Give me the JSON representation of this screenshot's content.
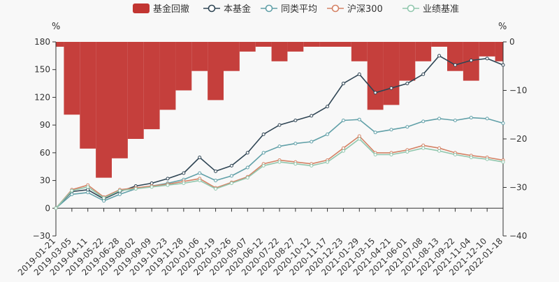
{
  "chart_data": {
    "type": "line",
    "legend": [
      {
        "name": "基金回撤",
        "color": "#c23531",
        "kind": "bar"
      },
      {
        "name": "本基金",
        "color": "#2f4554",
        "kind": "line"
      },
      {
        "name": "同类平均",
        "color": "#61a0a8",
        "kind": "line"
      },
      {
        "name": "沪深300",
        "color": "#d48265",
        "kind": "line"
      },
      {
        "name": "业绩基准",
        "color": "#91c7ae",
        "kind": "line"
      }
    ],
    "legend_position": "top-center",
    "y_left": {
      "label": "%",
      "min": -30,
      "max": 180,
      "ticks": [
        "−30",
        "0",
        "30",
        "60",
        "90",
        "120",
        "150",
        "180"
      ]
    },
    "y_right": {
      "label": "%",
      "min": -40,
      "max": 0,
      "ticks": [
        "−40",
        "−30",
        "−20",
        "−10",
        "0"
      ]
    },
    "x_tick_labels": [
      "2019-01-21",
      "2019-03-05",
      "2019-04-11",
      "2019-05-22",
      "2019-06-28",
      "2019-08-02",
      "2019-09-09",
      "2019-10-23",
      "2019-11-28",
      "2020-01-06",
      "2020-02-19",
      "2020-03-26",
      "2020-05-07",
      "2020-06-12",
      "2020-07-22",
      "2020-08-27",
      "2020-10-12",
      "2020-11-17",
      "2020-12-23",
      "2021-01-29",
      "2021-03-15",
      "2021-04-21",
      "2021-06-01",
      "2021-07-08",
      "2021-08-13",
      "2021-09-22",
      "2021-11-04",
      "2021-12-10",
      "2022-01-18"
    ],
    "series": [
      {
        "name": "本基金",
        "values": [
          0,
          18,
          20,
          10,
          18,
          24,
          27,
          32,
          38,
          55,
          40,
          46,
          60,
          80,
          90,
          95,
          100,
          110,
          135,
          145,
          125,
          130,
          135,
          145,
          165,
          155,
          160,
          162,
          155
        ]
      },
      {
        "name": "同类平均",
        "values": [
          0,
          15,
          17,
          8,
          15,
          21,
          24,
          27,
          31,
          38,
          30,
          35,
          44,
          60,
          67,
          70,
          72,
          80,
          95,
          96,
          82,
          85,
          88,
          94,
          97,
          95,
          98,
          97,
          92
        ]
      },
      {
        "name": "沪深300",
        "values": [
          0,
          20,
          25,
          12,
          20,
          22,
          24,
          26,
          29,
          32,
          22,
          28,
          34,
          48,
          52,
          50,
          48,
          52,
          65,
          78,
          60,
          60,
          63,
          68,
          65,
          60,
          57,
          55,
          52
        ]
      },
      {
        "name": "业绩基准",
        "values": [
          0,
          19,
          23,
          11,
          19,
          21,
          23,
          25,
          27,
          30,
          21,
          27,
          33,
          46,
          50,
          48,
          46,
          50,
          62,
          75,
          58,
          58,
          61,
          65,
          62,
          58,
          55,
          53,
          50
        ]
      },
      {
        "name": "基金回撤",
        "values": [
          -1,
          -15,
          -22,
          -28,
          -24,
          -20,
          -18,
          -14,
          -10,
          -6,
          -12,
          -6,
          -2,
          -1,
          -4,
          -2,
          -1,
          -1,
          -1,
          -4,
          -14,
          -13,
          -8,
          -4,
          -1,
          -6,
          -8,
          -3,
          -4
        ]
      }
    ]
  }
}
